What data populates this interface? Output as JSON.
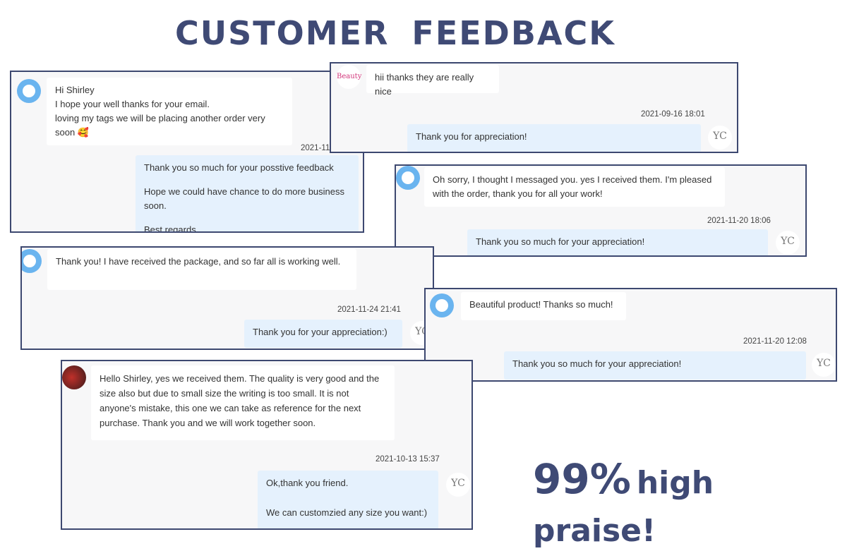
{
  "title": "CUSTOMER  FEEDBACK",
  "praise": {
    "big": "99%",
    "small": "high praise!"
  },
  "colors": {
    "frame": "#3d4870",
    "title": "#3f4a75",
    "outgoing_bubble": "#e5f1fd",
    "incoming_bubble": "#ffffff"
  },
  "chats": [
    {
      "incoming": [
        "Hi Shirley",
        "I hope your well thanks for your email.",
        "loving my tags we will be placing another order very soon 🥰"
      ],
      "timestamp": "2021-11-",
      "outgoing": [
        "Thank you so much for your posstive feedback",
        "Hope we could have chance to do more business soon.",
        "Best regards"
      ]
    },
    {
      "incoming": [
        "hii thanks they are really nice"
      ],
      "timestamp": "2021-09-16 18:01",
      "outgoing": [
        "Thank you for appreciation!"
      ]
    },
    {
      "incoming": [
        "Oh sorry, I thought I messaged you. yes I received them. I'm pleased with the order, thank you for all your work!"
      ],
      "timestamp": "2021-11-20 18:06",
      "outgoing": [
        "Thank you so much for your appreciation!"
      ]
    },
    {
      "incoming": [
        "Thank you! I have received the package, and so far all is working well."
      ],
      "timestamp": "2021-11-24 21:41",
      "outgoing": [
        "Thank you for your appreciation:)"
      ]
    },
    {
      "incoming": [
        "Beautiful product! Thanks so much!"
      ],
      "timestamp": "2021-11-20 12:08",
      "outgoing": [
        "Thank you so much for your appreciation!"
      ]
    },
    {
      "incoming": [
        "Hello Shirley, yes we received them. The quality is very good and the size also but due to small size the writing is too small. It is not anyone's mistake, this one we can take as reference for the next purchase. Thank you and we will work together soon."
      ],
      "timestamp": "2021-10-13 15:37",
      "outgoing": [
        "Ok,thank you friend.",
        "We can customzied any size you want:)"
      ]
    }
  ],
  "avatars": {
    "seller_logo": "YC",
    "pink_logo": "Beauty"
  }
}
